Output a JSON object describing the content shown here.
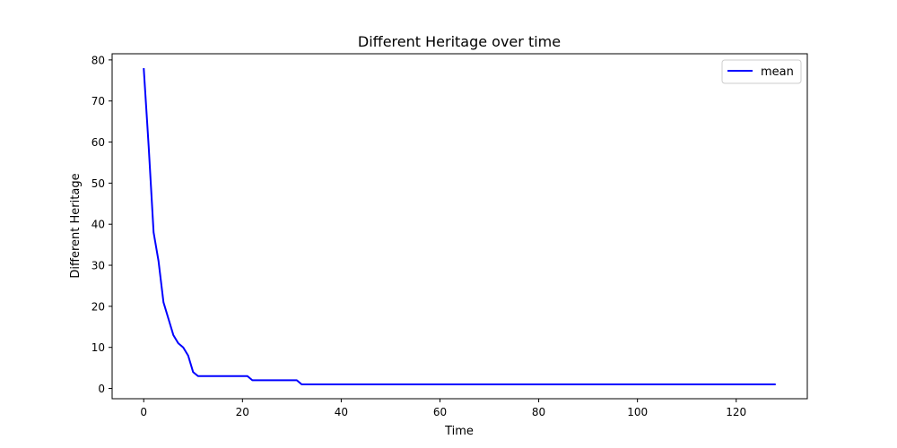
{
  "chart_data": {
    "type": "line",
    "title": "Different Heritage over time",
    "xlabel": "Time",
    "ylabel": "Different Heritage",
    "xlim": [
      -6.4,
      134.4
    ],
    "ylim": [
      -2.5,
      81.5
    ],
    "xticks": [
      0,
      20,
      40,
      60,
      80,
      100,
      120
    ],
    "yticks": [
      0,
      10,
      20,
      30,
      40,
      50,
      60,
      70,
      80
    ],
    "grid": false,
    "legend_position": "top-right",
    "series": [
      {
        "name": "mean",
        "color": "#0000ff",
        "x": [
          0,
          1,
          2,
          3,
          4,
          5,
          6,
          7,
          8,
          9,
          10,
          11,
          12,
          13,
          14,
          15,
          16,
          17,
          18,
          19,
          20,
          21,
          22,
          23,
          24,
          25,
          26,
          27,
          28,
          29,
          30,
          31,
          32,
          33,
          40,
          60,
          80,
          100,
          120,
          128
        ],
        "y": [
          78,
          59,
          38,
          31,
          21,
          17,
          13,
          11,
          10,
          8,
          4,
          3,
          3,
          3,
          3,
          3,
          3,
          3,
          3,
          3,
          3,
          3,
          2,
          2,
          2,
          2,
          2,
          2,
          2,
          2,
          2,
          2,
          1,
          1,
          1,
          1,
          1,
          1,
          1,
          1
        ]
      }
    ]
  }
}
